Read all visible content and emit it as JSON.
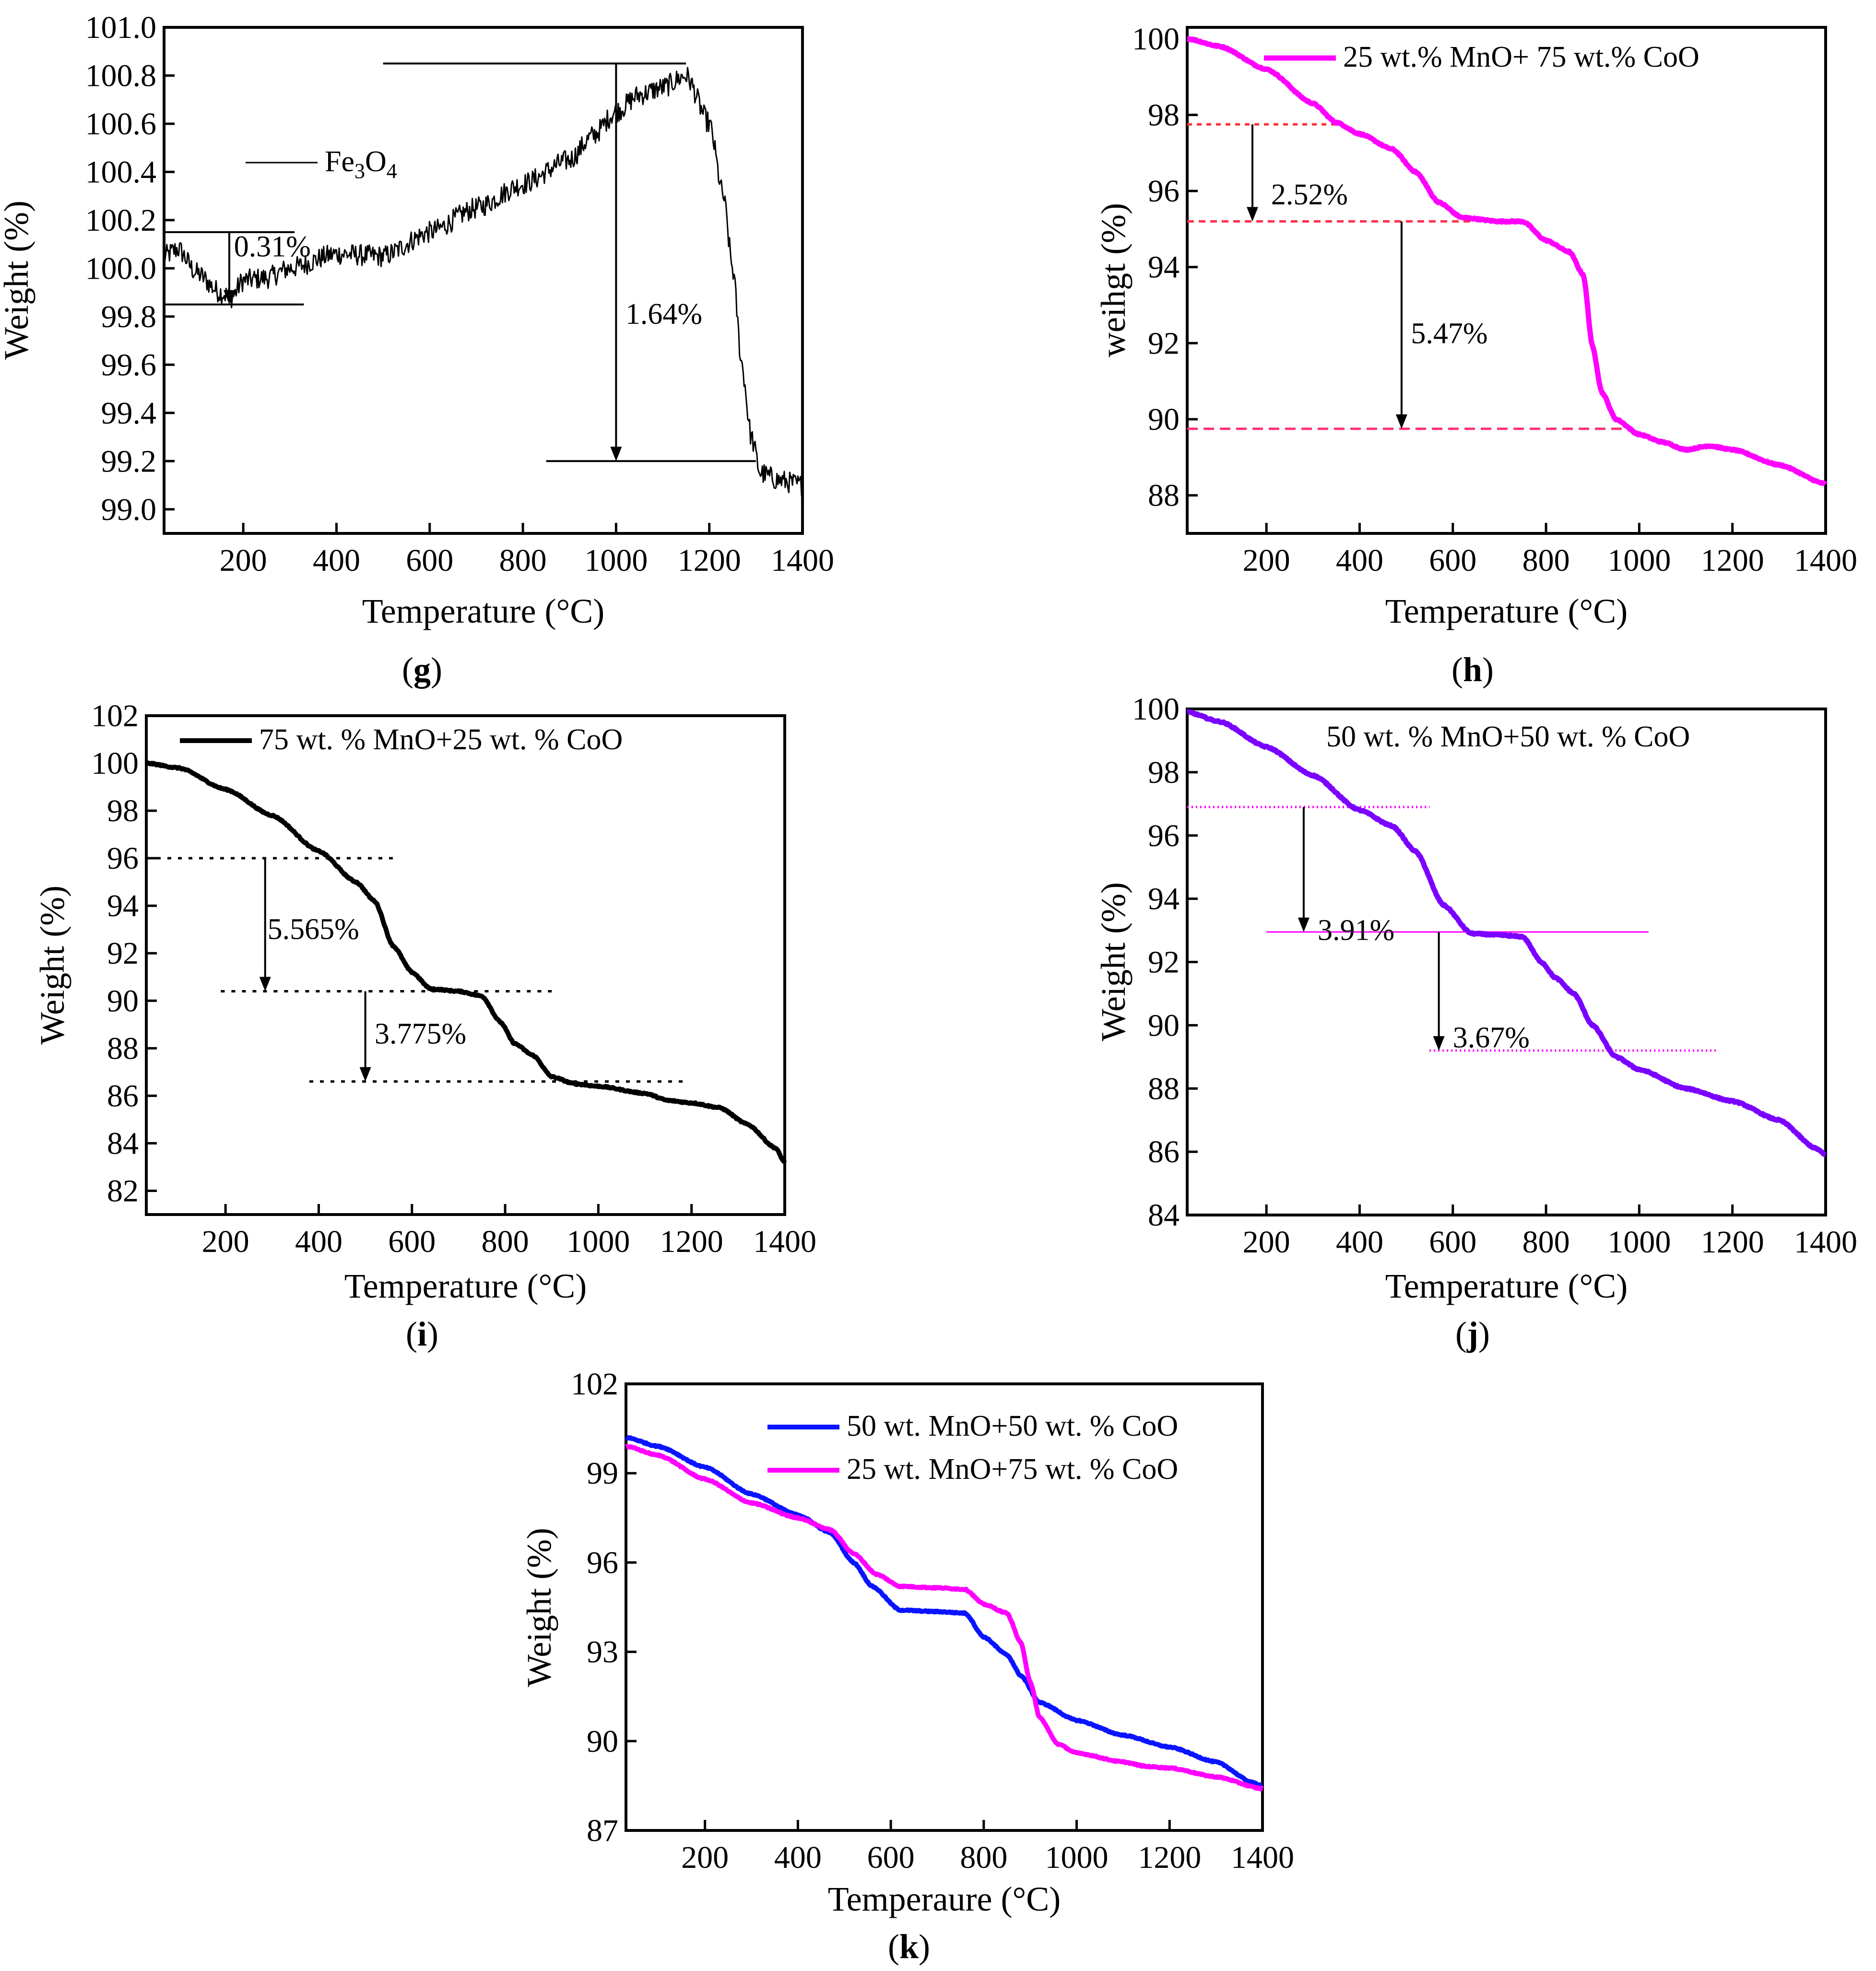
{
  "chart_data": [
    {
      "id": "g",
      "panel_label": "g",
      "type": "line",
      "title": "",
      "xlabel": "Temperature (°C)",
      "ylabel": "Weight (%)",
      "xlim": [
        30,
        1400
      ],
      "ylim": [
        98.9,
        101.0
      ],
      "xticks": [
        200,
        400,
        600,
        800,
        1000,
        1200,
        1400
      ],
      "yticks": [
        99.0,
        99.2,
        99.4,
        99.6,
        99.8,
        100.0,
        100.2,
        100.4,
        100.6,
        100.8,
        101.0
      ],
      "ytick_decimals": 1,
      "series": [
        {
          "name": "Fe3O4",
          "legend_base": "Fe",
          "legend_sub1": "3",
          "legend_mid": "O",
          "legend_sub2": "4",
          "color": "#000000",
          "line_width": 3,
          "noise": 0.045,
          "points": [
            [
              30,
              100.05
            ],
            [
              60,
              100.08
            ],
            [
              100,
              99.98
            ],
            [
              150,
              99.9
            ],
            [
              175,
              99.88
            ],
            [
              200,
              99.95
            ],
            [
              250,
              99.96
            ],
            [
              300,
              100.0
            ],
            [
              400,
              100.06
            ],
            [
              500,
              100.05
            ],
            [
              600,
              100.15
            ],
            [
              700,
              100.25
            ],
            [
              800,
              100.35
            ],
            [
              900,
              100.45
            ],
            [
              950,
              100.55
            ],
            [
              1000,
              100.65
            ],
            [
              1050,
              100.72
            ],
            [
              1100,
              100.75
            ],
            [
              1150,
              100.8
            ],
            [
              1200,
              100.6
            ],
            [
              1230,
              100.3
            ],
            [
              1250,
              100.0
            ],
            [
              1270,
              99.6
            ],
            [
              1290,
              99.3
            ],
            [
              1310,
              99.15
            ],
            [
              1350,
              99.12
            ],
            [
              1400,
              99.1
            ]
          ]
        }
      ],
      "legend": {
        "position": "upper-left",
        "outlined": false
      },
      "annotations": [
        {
          "type": "hline",
          "y": 100.15,
          "x1": 30,
          "x2": 310,
          "color": "#000000",
          "dash": "solid"
        },
        {
          "type": "hline",
          "y": 99.85,
          "x1": 30,
          "x2": 330,
          "color": "#000000",
          "dash": "solid"
        },
        {
          "type": "arrow",
          "x": 170,
          "y1": 100.15,
          "y2": 99.85,
          "color": "#000000"
        },
        {
          "type": "label",
          "text": "0.31%",
          "x": 180,
          "y": 100.05
        },
        {
          "type": "hline",
          "y": 100.85,
          "x1": 500,
          "x2": 1150,
          "color": "#000000",
          "dash": "solid"
        },
        {
          "type": "hline",
          "y": 99.2,
          "x1": 850,
          "x2": 1300,
          "color": "#000000",
          "dash": "solid"
        },
        {
          "type": "arrow",
          "x": 1000,
          "y1": 100.85,
          "y2": 99.2,
          "color": "#000000"
        },
        {
          "type": "label",
          "text": "1.64%",
          "x": 1020,
          "y": 99.77
        }
      ]
    },
    {
      "id": "h",
      "panel_label": "h",
      "type": "line",
      "title": "",
      "xlabel": "Temperature (°C)",
      "ylabel": "weihgt  (%)",
      "xlim": [
        30,
        1400
      ],
      "ylim": [
        87.0,
        100.3
      ],
      "xticks": [
        200,
        400,
        600,
        800,
        1000,
        1200,
        1400
      ],
      "yticks": [
        88,
        90,
        92,
        94,
        96,
        98,
        100
      ],
      "ytick_decimals": 0,
      "series": [
        {
          "name": "25 wt.% MnO+ 75 wt.% CoO",
          "color": "#ff00ff",
          "line_width": 11,
          "noise": 0,
          "points": [
            [
              30,
              100.0
            ],
            [
              100,
              99.8
            ],
            [
              200,
              99.2
            ],
            [
              300,
              98.3
            ],
            [
              350,
              97.8
            ],
            [
              400,
              97.5
            ],
            [
              470,
              97.1
            ],
            [
              520,
              96.5
            ],
            [
              570,
              95.7
            ],
            [
              620,
              95.3
            ],
            [
              700,
              95.2
            ],
            [
              750,
              95.2
            ],
            [
              800,
              94.7
            ],
            [
              850,
              94.4
            ],
            [
              880,
              93.8
            ],
            [
              900,
              91.9
            ],
            [
              920,
              90.7
            ],
            [
              950,
              90.0
            ],
            [
              1000,
              89.6
            ],
            [
              1050,
              89.4
            ],
            [
              1100,
              89.2
            ],
            [
              1150,
              89.3
            ],
            [
              1200,
              89.2
            ],
            [
              1300,
              88.8
            ],
            [
              1400,
              88.3
            ]
          ]
        }
      ],
      "legend": {
        "position": "top",
        "outlined": false
      },
      "annotations": [
        {
          "type": "hline",
          "y": 97.75,
          "x1": 30,
          "x2": 360,
          "color": "#ff3030",
          "dash": "10,10"
        },
        {
          "type": "hline",
          "y": 95.2,
          "x1": 30,
          "x2": 640,
          "color": "#ff3050",
          "dash": "14,10"
        },
        {
          "type": "arrow",
          "x": 170,
          "y1": 97.75,
          "y2": 95.2,
          "color": "#000000"
        },
        {
          "type": "label",
          "text": "2.52%",
          "x": 210,
          "y": 95.65
        },
        {
          "type": "hline",
          "y": 89.75,
          "x1": 30,
          "x2": 970,
          "color": "#ff3070",
          "dash": "22,12"
        },
        {
          "type": "arrow",
          "x": 490,
          "y1": 95.2,
          "y2": 89.75,
          "color": "#000000"
        },
        {
          "type": "label",
          "text": "5.47%",
          "x": 510,
          "y": 92.0
        }
      ]
    },
    {
      "id": "i",
      "panel_label": "i",
      "type": "line",
      "title": "",
      "xlabel": "Temperature (°C)",
      "ylabel": "Weight (%)",
      "xlim": [
        30,
        1400
      ],
      "ylim": [
        81.0,
        102.0
      ],
      "xticks": [
        200,
        400,
        600,
        800,
        1000,
        1200,
        1400
      ],
      "yticks": [
        82,
        84,
        86,
        88,
        90,
        92,
        94,
        96,
        98,
        100,
        102
      ],
      "ytick_decimals": 0,
      "series": [
        {
          "name": "75 wt. % MnO+25 wt. % CoO",
          "color": "#000000",
          "line_width": 10,
          "noise": 0,
          "points": [
            [
              30,
              100.0
            ],
            [
              100,
              99.8
            ],
            [
              200,
              98.9
            ],
            [
              300,
              97.8
            ],
            [
              400,
              96.3
            ],
            [
              480,
              95.0
            ],
            [
              520,
              94.2
            ],
            [
              560,
              92.3
            ],
            [
              600,
              91.2
            ],
            [
              640,
              90.5
            ],
            [
              700,
              90.4
            ],
            [
              750,
              90.2
            ],
            [
              790,
              89.1
            ],
            [
              820,
              88.2
            ],
            [
              860,
              87.7
            ],
            [
              900,
              86.8
            ],
            [
              950,
              86.5
            ],
            [
              1000,
              86.4
            ],
            [
              1100,
              86.1
            ],
            [
              1150,
              85.8
            ],
            [
              1200,
              85.7
            ],
            [
              1260,
              85.5
            ],
            [
              1320,
              84.8
            ],
            [
              1380,
              83.8
            ],
            [
              1400,
              83.2
            ]
          ]
        }
      ],
      "legend": {
        "position": "top-left",
        "outlined": false
      },
      "annotations": [
        {
          "type": "hline",
          "y": 96.0,
          "x1": 30,
          "x2": 560,
          "color": "#000000",
          "dash": "8,14"
        },
        {
          "type": "hline",
          "y": 90.4,
          "x1": 190,
          "x2": 900,
          "color": "#000000",
          "dash": "8,14"
        },
        {
          "type": "hline",
          "y": 86.6,
          "x1": 380,
          "x2": 1190,
          "color": "#000000",
          "dash": "8,14"
        },
        {
          "type": "arrow",
          "x": 285,
          "y1": 96.0,
          "y2": 90.4,
          "color": "#000000"
        },
        {
          "type": "label",
          "text": "5.565%",
          "x": 290,
          "y": 92.6
        },
        {
          "type": "arrow",
          "x": 500,
          "y1": 90.4,
          "y2": 86.6,
          "color": "#000000"
        },
        {
          "type": "label",
          "text": "3.775%",
          "x": 520,
          "y": 88.2
        }
      ]
    },
    {
      "id": "j",
      "panel_label": "j",
      "type": "line",
      "title": "",
      "xlabel": "Temperature (°C)",
      "ylabel": "Weight (%)",
      "xlim": [
        30,
        1400
      ],
      "ylim": [
        84.0,
        100.0
      ],
      "xticks": [
        200,
        400,
        600,
        800,
        1000,
        1200,
        1400
      ],
      "yticks": [
        84,
        86,
        88,
        90,
        92,
        94,
        96,
        98,
        100
      ],
      "ytick_decimals": 0,
      "series": [
        {
          "name": "50 wt. % MnO+50 wt. % CoO",
          "color": "#7a00ff",
          "line_width": 11,
          "noise": 0,
          "points": [
            [
              30,
              99.9
            ],
            [
              100,
              99.6
            ],
            [
              200,
              98.8
            ],
            [
              300,
              97.9
            ],
            [
              400,
              96.8
            ],
            [
              470,
              96.3
            ],
            [
              520,
              95.5
            ],
            [
              580,
              93.8
            ],
            [
              640,
              92.9
            ],
            [
              700,
              92.85
            ],
            [
              750,
              92.8
            ],
            [
              790,
              92.0
            ],
            [
              820,
              91.5
            ],
            [
              860,
              91.0
            ],
            [
              900,
              90.0
            ],
            [
              950,
              89.0
            ],
            [
              1000,
              88.6
            ],
            [
              1100,
              88.0
            ],
            [
              1200,
              87.6
            ],
            [
              1300,
              87.0
            ],
            [
              1380,
              86.1
            ],
            [
              1400,
              85.9
            ]
          ]
        }
      ],
      "legend": {
        "position": "top",
        "outlined": false,
        "show_line": false
      },
      "annotations": [
        {
          "type": "hline",
          "y": 96.9,
          "x1": 30,
          "x2": 550,
          "color": "#ff00ff",
          "dash": "3,6"
        },
        {
          "type": "hline",
          "y": 92.95,
          "x1": 200,
          "x2": 1020,
          "color": "#ff00ff",
          "dash": "none-thin"
        },
        {
          "type": "hline",
          "y": 89.2,
          "x1": 550,
          "x2": 1170,
          "color": "#ff00ff",
          "dash": "3,6"
        },
        {
          "type": "arrow",
          "x": 280,
          "y1": 96.9,
          "y2": 92.95,
          "color": "#000000"
        },
        {
          "type": "label",
          "text": "3.91%",
          "x": 310,
          "y": 92.7
        },
        {
          "type": "arrow",
          "x": 570,
          "y1": 92.95,
          "y2": 89.2,
          "color": "#000000"
        },
        {
          "type": "label",
          "text": "3.67%",
          "x": 600,
          "y": 89.3
        }
      ]
    },
    {
      "id": "k",
      "panel_label": "k",
      "type": "line",
      "title": "",
      "xlabel": "Temperaure (°C)",
      "ylabel": "Weight (%)",
      "xlim": [
        30,
        1400
      ],
      "ylim": [
        87.0,
        102.0
      ],
      "xticks": [
        200,
        400,
        600,
        800,
        1000,
        1200,
        1400
      ],
      "yticks": [
        87,
        90,
        93,
        96,
        99,
        102
      ],
      "ytick_decimals": 0,
      "series": [
        {
          "name": "50 wt. MnO+50 wt. % CoO",
          "color": "#0a14ff",
          "line_width": 10,
          "noise": 0,
          "points": [
            [
              30,
              100.2
            ],
            [
              100,
              99.9
            ],
            [
              200,
              99.2
            ],
            [
              300,
              98.3
            ],
            [
              400,
              97.6
            ],
            [
              470,
              97.0
            ],
            [
              520,
              96.0
            ],
            [
              560,
              95.2
            ],
            [
              620,
              94.4
            ],
            [
              700,
              94.35
            ],
            [
              760,
              94.3
            ],
            [
              800,
              93.5
            ],
            [
              850,
              92.9
            ],
            [
              880,
              92.2
            ],
            [
              920,
              91.3
            ],
            [
              1000,
              90.7
            ],
            [
              1100,
              90.2
            ],
            [
              1200,
              89.8
            ],
            [
              1300,
              89.3
            ],
            [
              1380,
              88.6
            ],
            [
              1400,
              88.5
            ]
          ]
        },
        {
          "name": "25 wt. MnO+75 wt. % CoO",
          "color": "#ff00ff",
          "line_width": 10,
          "noise": 0,
          "points": [
            [
              30,
              99.9
            ],
            [
              100,
              99.6
            ],
            [
              200,
              98.8
            ],
            [
              300,
              98.0
            ],
            [
              400,
              97.5
            ],
            [
              470,
              97.1
            ],
            [
              520,
              96.3
            ],
            [
              570,
              95.6
            ],
            [
              620,
              95.2
            ],
            [
              700,
              95.15
            ],
            [
              760,
              95.1
            ],
            [
              800,
              94.6
            ],
            [
              850,
              94.3
            ],
            [
              880,
              93.3
            ],
            [
              900,
              92.0
            ],
            [
              920,
              90.8
            ],
            [
              960,
              89.9
            ],
            [
              1000,
              89.6
            ],
            [
              1100,
              89.3
            ],
            [
              1150,
              89.15
            ],
            [
              1200,
              89.1
            ],
            [
              1300,
              88.8
            ],
            [
              1400,
              88.4
            ]
          ]
        }
      ],
      "legend": {
        "position": "top",
        "outlined": false
      },
      "annotations": []
    }
  ]
}
